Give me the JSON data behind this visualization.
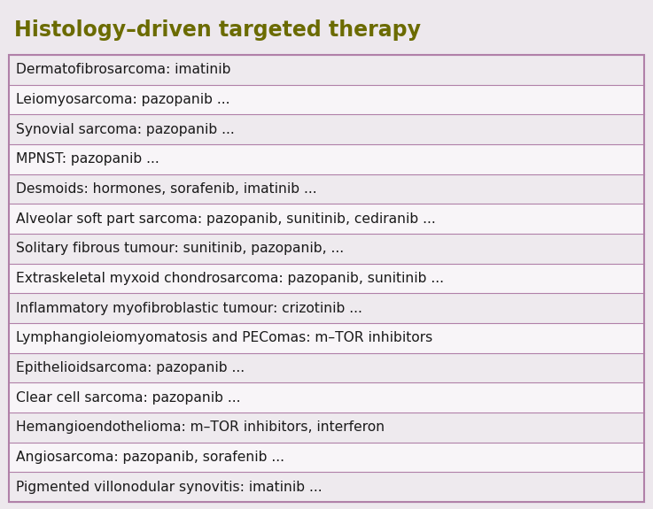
{
  "title": "Histology–driven targeted therapy",
  "title_color": "#555500",
  "title_bg": "#ede8ed",
  "table_bg_odd": "#eeeaee",
  "table_bg_even": "#f8f5f8",
  "border_color": "#b080a8",
  "text_color": "#1a1a1a",
  "rows": [
    "Dermatofibrosarcoma: imatinib",
    "Leiomyosarcoma: pazopanib ...",
    "Synovial sarcoma: pazopanib ...",
    "MPNST: pazopanib ...",
    "Desmoids: hormones, sorafenib, imatinib ...",
    "Alveolar soft part sarcoma: pazopanib, sunitinib, cediranib ...",
    "Solitary fibrous tumour: sunitinib, pazopanib, ...",
    "Extraskeletal myxoid chondrosarcoma: pazopanib, sunitinib ...",
    "Inflammatory myofibroblastic tumour: crizotinib ...",
    "Lymphangioleiomyomatosis and PEComas: m–TOR inhibitors",
    "Epithelioidsarcoma: pazopanib ...",
    "Clear cell sarcoma: pazopanib ...",
    "Hemangioendothelioma: m–TOR inhibitors, interferon",
    "Angiosarcoma: pazopanib, sorafenib ...",
    "Pigmented villonodular synovitis: imatinib ..."
  ],
  "figsize": [
    7.37,
    5.75
  ],
  "dpi": 100
}
